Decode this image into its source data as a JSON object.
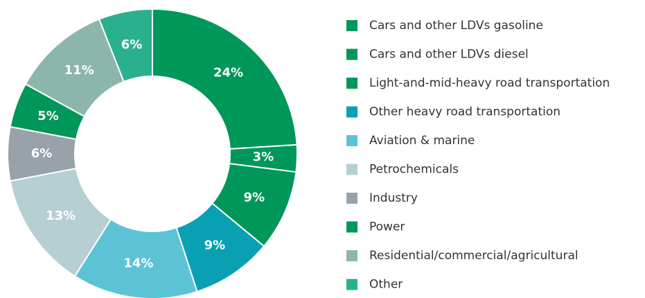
{
  "chart_data": {
    "type": "pie",
    "categories": [
      "Cars and other LDVs gasoline",
      "Cars and other LDVs diesel",
      "Light-and-mid-heavy road transportation",
      "Other heavy road transportation",
      "Aviation & marine",
      "Petrochemicals",
      "Industry",
      "Power",
      "Residential/commercial/agricultural",
      "Other"
    ],
    "values": [
      24,
      3,
      9,
      9,
      14,
      13,
      6,
      5,
      11,
      6
    ],
    "value_labels": [
      "24%",
      "3%",
      "9%",
      "9%",
      "14%",
      "13%",
      "6%",
      "5%",
      "11%",
      "6%"
    ],
    "colors": [
      "#00975a",
      "#00975a",
      "#00975a",
      "#0aa0b4",
      "#5cc3d7",
      "#b6cfd3",
      "#99a2aa",
      "#00975a",
      "#8cb6ac",
      "#2bb08d"
    ],
    "donut": true,
    "legend": "right"
  }
}
